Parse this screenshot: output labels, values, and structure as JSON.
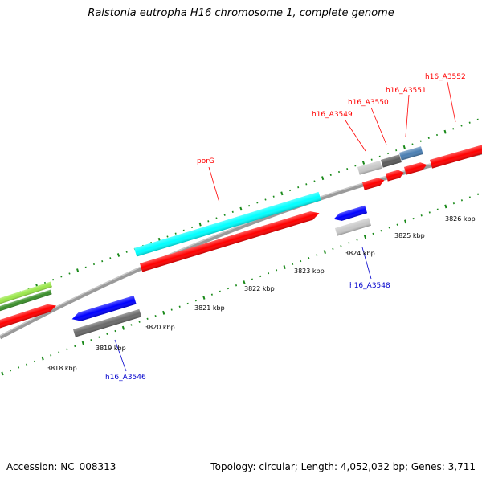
{
  "title": "Ralstonia eutropha H16 chromosome 1, complete genome",
  "footer": {
    "accession": "Accession: NC_008313",
    "summary": "Topology: circular; Length: 4,052,032 bp; Genes: 3,711"
  },
  "kbp_labels": [
    "3818 kbp",
    "3819 kbp",
    "3820 kbp",
    "3821 kbp",
    "3822 kbp",
    "3823 kbp",
    "3824 kbp",
    "3825 kbp",
    "3826 kbp"
  ],
  "gene_labels": [
    {
      "text": "porG",
      "color": "#ff0000"
    },
    {
      "text": "h16_A3549",
      "color": "#ff0000"
    },
    {
      "text": "h16_A3550",
      "color": "#ff0000"
    },
    {
      "text": "h16_A3551",
      "color": "#ff0000"
    },
    {
      "text": "h16_A3552",
      "color": "#ff0000"
    },
    {
      "text": "h16_A3546",
      "color": "#0000cc"
    },
    {
      "text": "h16_A3548",
      "color": "#0000cc"
    }
  ],
  "colors": {
    "cds_forward": "#ff0000",
    "cds_reverse": "#0000ff",
    "gene_bar_forward": "#00ffff",
    "gene_bar_reverse": "#808080",
    "light_gray": "#c0c0c0",
    "dark_gray": "#606060",
    "steel_blue": "#4682b4",
    "lime": "#90ee40",
    "green": "#2e8b22",
    "backbone": "#808080",
    "ticks": "#008000"
  }
}
